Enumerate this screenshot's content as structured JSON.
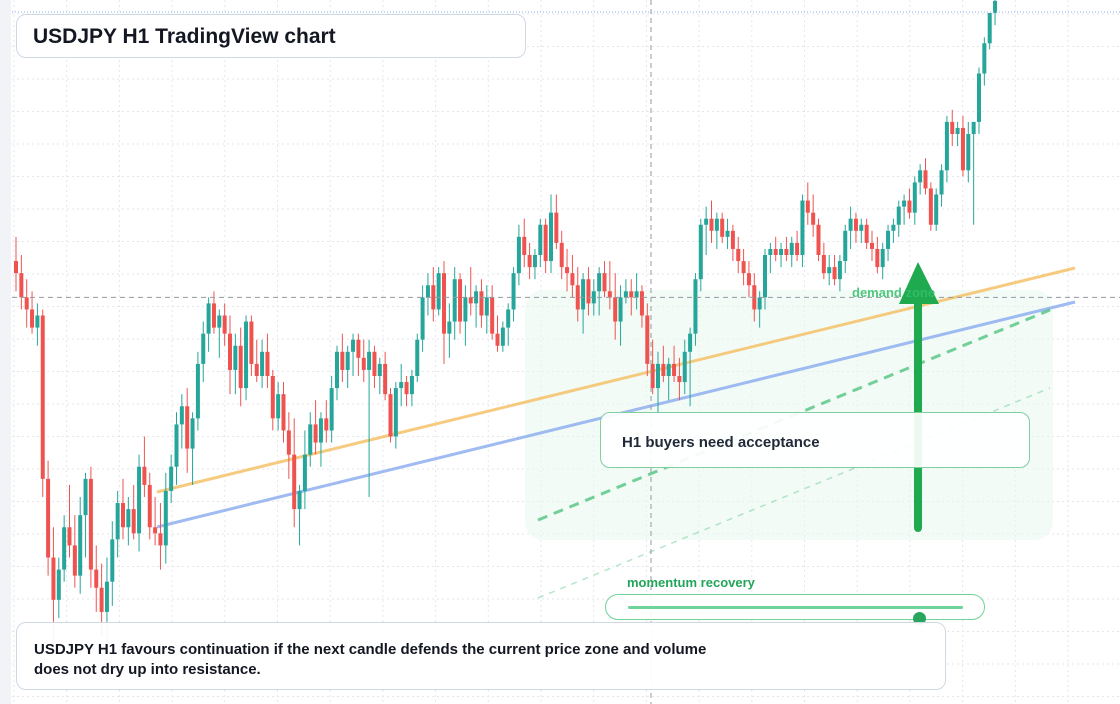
{
  "title": "USDJPY H1 TradingView chart",
  "annotations": {
    "note": "H1 buyers need acceptance",
    "zone_label": "demand zone",
    "summary": "USDJPY H1 favours continuation if the next candle defends the current price zone and volume does not dry up into resistance."
  },
  "momentum": {
    "label": "momentum recovery",
    "level": 0.87
  },
  "colors": {
    "up": "#26a69a",
    "down": "#ef5350",
    "support_line": "#f5c26b",
    "trend_line": "#8fb0ef",
    "channel": "#2fb866",
    "arrow": "#1faa4f",
    "grid": "#e3e6ec"
  },
  "chart_data": {
    "type": "candlestick",
    "symbol": "USDJPY",
    "timeframe": "H1",
    "ylim": [
      0,
      100
    ],
    "crosshair": {
      "candle_index": 136,
      "price": 53
    },
    "candles": [
      {
        "o": 59,
        "h": 63,
        "l": 54,
        "c": 57
      },
      {
        "o": 57,
        "h": 60,
        "l": 51,
        "c": 53
      },
      {
        "o": 53,
        "h": 56,
        "l": 48,
        "c": 51
      },
      {
        "o": 51,
        "h": 54,
        "l": 47,
        "c": 48
      },
      {
        "o": 48,
        "h": 52,
        "l": 45,
        "c": 50
      },
      {
        "o": 50,
        "h": 51,
        "l": 20,
        "c": 23
      },
      {
        "o": 23,
        "h": 26,
        "l": 7,
        "c": 10
      },
      {
        "o": 10,
        "h": 15,
        "l": -5,
        "c": 3
      },
      {
        "o": 3,
        "h": 10,
        "l": 0,
        "c": 8
      },
      {
        "o": 8,
        "h": 17,
        "l": 6,
        "c": 15
      },
      {
        "o": 15,
        "h": 22,
        "l": 10,
        "c": 12
      },
      {
        "o": 12,
        "h": 17,
        "l": 5,
        "c": 7
      },
      {
        "o": 7,
        "h": 20,
        "l": 4,
        "c": 17
      },
      {
        "o": 17,
        "h": 24,
        "l": 10,
        "c": 23
      },
      {
        "o": 23,
        "h": 25,
        "l": 5,
        "c": 8
      },
      {
        "o": 8,
        "h": 12,
        "l": 1,
        "c": 5
      },
      {
        "o": 5,
        "h": 9,
        "l": -3,
        "c": 1
      },
      {
        "o": 1,
        "h": 10,
        "l": -6,
        "c": 6
      },
      {
        "o": 6,
        "h": 16,
        "l": 2,
        "c": 13
      },
      {
        "o": 13,
        "h": 21,
        "l": 10,
        "c": 19
      },
      {
        "o": 19,
        "h": 23,
        "l": 13,
        "c": 15
      },
      {
        "o": 15,
        "h": 20,
        "l": 12,
        "c": 18
      },
      {
        "o": 18,
        "h": 22,
        "l": 13,
        "c": 14
      },
      {
        "o": 14,
        "h": 27,
        "l": 11,
        "c": 25
      },
      {
        "o": 25,
        "h": 30,
        "l": 20,
        "c": 22
      },
      {
        "o": 22,
        "h": 24,
        "l": 13,
        "c": 15
      },
      {
        "o": 15,
        "h": 20,
        "l": 12,
        "c": 14
      },
      {
        "o": 14,
        "h": 19,
        "l": 8,
        "c": 12
      },
      {
        "o": 12,
        "h": 24,
        "l": 9,
        "c": 21
      },
      {
        "o": 21,
        "h": 27,
        "l": 19,
        "c": 25
      },
      {
        "o": 25,
        "h": 34,
        "l": 22,
        "c": 32
      },
      {
        "o": 32,
        "h": 37,
        "l": 28,
        "c": 35
      },
      {
        "o": 35,
        "h": 38,
        "l": 24,
        "c": 28
      },
      {
        "o": 28,
        "h": 34,
        "l": 22,
        "c": 33
      },
      {
        "o": 33,
        "h": 44,
        "l": 31,
        "c": 42
      },
      {
        "o": 42,
        "h": 49,
        "l": 39,
        "c": 47
      },
      {
        "o": 47,
        "h": 53,
        "l": 44,
        "c": 52
      },
      {
        "o": 52,
        "h": 54,
        "l": 47,
        "c": 48
      },
      {
        "o": 48,
        "h": 51,
        "l": 43,
        "c": 50
      },
      {
        "o": 50,
        "h": 52,
        "l": 45,
        "c": 47
      },
      {
        "o": 47,
        "h": 50,
        "l": 37,
        "c": 41
      },
      {
        "o": 41,
        "h": 47,
        "l": 37,
        "c": 45
      },
      {
        "o": 45,
        "h": 48,
        "l": 35,
        "c": 38
      },
      {
        "o": 38,
        "h": 50,
        "l": 36,
        "c": 49
      },
      {
        "o": 49,
        "h": 50,
        "l": 40,
        "c": 42
      },
      {
        "o": 42,
        "h": 46,
        "l": 39,
        "c": 40
      },
      {
        "o": 40,
        "h": 46,
        "l": 38,
        "c": 44
      },
      {
        "o": 44,
        "h": 47,
        "l": 38,
        "c": 40
      },
      {
        "o": 40,
        "h": 41,
        "l": 31,
        "c": 33
      },
      {
        "o": 33,
        "h": 39,
        "l": 31,
        "c": 37
      },
      {
        "o": 37,
        "h": 39,
        "l": 29,
        "c": 31
      },
      {
        "o": 31,
        "h": 34,
        "l": 23,
        "c": 27
      },
      {
        "o": 27,
        "h": 33,
        "l": 15,
        "c": 18
      },
      {
        "o": 18,
        "h": 22,
        "l": 12,
        "c": 21
      },
      {
        "o": 21,
        "h": 31,
        "l": 18,
        "c": 27
      },
      {
        "o": 27,
        "h": 34,
        "l": 25,
        "c": 32
      },
      {
        "o": 32,
        "h": 36,
        "l": 27,
        "c": 29
      },
      {
        "o": 29,
        "h": 34,
        "l": 25,
        "c": 33
      },
      {
        "o": 33,
        "h": 36,
        "l": 29,
        "c": 31
      },
      {
        "o": 31,
        "h": 40,
        "l": 29,
        "c": 38
      },
      {
        "o": 38,
        "h": 45,
        "l": 36,
        "c": 44
      },
      {
        "o": 44,
        "h": 47,
        "l": 39,
        "c": 41
      },
      {
        "o": 41,
        "h": 45,
        "l": 38,
        "c": 44
      },
      {
        "o": 44,
        "h": 47,
        "l": 40,
        "c": 46
      },
      {
        "o": 46,
        "h": 47,
        "l": 40,
        "c": 43
      },
      {
        "o": 43,
        "h": 46,
        "l": 39,
        "c": 41
      },
      {
        "o": 41,
        "h": 46,
        "l": 20,
        "c": 44
      },
      {
        "o": 44,
        "h": 45,
        "l": 38,
        "c": 40
      },
      {
        "o": 40,
        "h": 43,
        "l": 37,
        "c": 42
      },
      {
        "o": 42,
        "h": 44,
        "l": 36,
        "c": 37
      },
      {
        "o": 37,
        "h": 38,
        "l": 29,
        "c": 30
      },
      {
        "o": 30,
        "h": 39,
        "l": 28,
        "c": 38
      },
      {
        "o": 38,
        "h": 42,
        "l": 35,
        "c": 39
      },
      {
        "o": 39,
        "h": 40,
        "l": 35,
        "c": 37
      },
      {
        "o": 37,
        "h": 41,
        "l": 35,
        "c": 40
      },
      {
        "o": 40,
        "h": 47,
        "l": 39,
        "c": 46
      },
      {
        "o": 46,
        "h": 55,
        "l": 44,
        "c": 53
      },
      {
        "o": 53,
        "h": 57,
        "l": 50,
        "c": 55
      },
      {
        "o": 55,
        "h": 58,
        "l": 49,
        "c": 51
      },
      {
        "o": 51,
        "h": 58,
        "l": 50,
        "c": 57
      },
      {
        "o": 57,
        "h": 59,
        "l": 42,
        "c": 47
      },
      {
        "o": 47,
        "h": 52,
        "l": 43,
        "c": 49
      },
      {
        "o": 49,
        "h": 58,
        "l": 46,
        "c": 56
      },
      {
        "o": 56,
        "h": 57,
        "l": 47,
        "c": 49
      },
      {
        "o": 49,
        "h": 55,
        "l": 45,
        "c": 53
      },
      {
        "o": 53,
        "h": 58,
        "l": 50,
        "c": 52
      },
      {
        "o": 52,
        "h": 55,
        "l": 48,
        "c": 54
      },
      {
        "o": 54,
        "h": 56,
        "l": 48,
        "c": 50
      },
      {
        "o": 50,
        "h": 55,
        "l": 47,
        "c": 53
      },
      {
        "o": 53,
        "h": 55,
        "l": 46,
        "c": 47
      },
      {
        "o": 47,
        "h": 50,
        "l": 44,
        "c": 45
      },
      {
        "o": 45,
        "h": 49,
        "l": 44,
        "c": 48
      },
      {
        "o": 48,
        "h": 52,
        "l": 45,
        "c": 51
      },
      {
        "o": 51,
        "h": 58,
        "l": 49,
        "c": 57
      },
      {
        "o": 57,
        "h": 65,
        "l": 55,
        "c": 63
      },
      {
        "o": 63,
        "h": 66,
        "l": 58,
        "c": 60
      },
      {
        "o": 60,
        "h": 62,
        "l": 56,
        "c": 58
      },
      {
        "o": 58,
        "h": 61,
        "l": 56,
        "c": 60
      },
      {
        "o": 60,
        "h": 66,
        "l": 58,
        "c": 65
      },
      {
        "o": 65,
        "h": 66,
        "l": 57,
        "c": 59
      },
      {
        "o": 59,
        "h": 70,
        "l": 57,
        "c": 67
      },
      {
        "o": 67,
        "h": 70,
        "l": 61,
        "c": 62
      },
      {
        "o": 62,
        "h": 64,
        "l": 56,
        "c": 58
      },
      {
        "o": 58,
        "h": 61,
        "l": 54,
        "c": 57
      },
      {
        "o": 57,
        "h": 60,
        "l": 53,
        "c": 55
      },
      {
        "o": 55,
        "h": 58,
        "l": 49,
        "c": 51
      },
      {
        "o": 51,
        "h": 57,
        "l": 47,
        "c": 56
      },
      {
        "o": 56,
        "h": 58,
        "l": 50,
        "c": 52
      },
      {
        "o": 52,
        "h": 56,
        "l": 50,
        "c": 54
      },
      {
        "o": 54,
        "h": 58,
        "l": 50,
        "c": 57
      },
      {
        "o": 57,
        "h": 59,
        "l": 53,
        "c": 54
      },
      {
        "o": 54,
        "h": 59,
        "l": 51,
        "c": 53
      },
      {
        "o": 53,
        "h": 57,
        "l": 46,
        "c": 49
      },
      {
        "o": 49,
        "h": 55,
        "l": 45,
        "c": 53
      },
      {
        "o": 53,
        "h": 56,
        "l": 52,
        "c": 54
      },
      {
        "o": 54,
        "h": 56,
        "l": 50,
        "c": 53
      },
      {
        "o": 53,
        "h": 57,
        "l": 51,
        "c": 54
      },
      {
        "o": 54,
        "h": 55,
        "l": 48,
        "c": 50
      },
      {
        "o": 50,
        "h": 52,
        "l": 40,
        "c": 42
      },
      {
        "o": 42,
        "h": 46,
        "l": 37,
        "c": 38
      },
      {
        "o": 38,
        "h": 44,
        "l": 34,
        "c": 42
      },
      {
        "o": 42,
        "h": 45,
        "l": 39,
        "c": 40
      },
      {
        "o": 40,
        "h": 43,
        "l": 36,
        "c": 42
      },
      {
        "o": 42,
        "h": 45,
        "l": 39,
        "c": 40
      },
      {
        "o": 40,
        "h": 43,
        "l": 36,
        "c": 39
      },
      {
        "o": 39,
        "h": 46,
        "l": 37,
        "c": 44
      },
      {
        "o": 44,
        "h": 48,
        "l": 35,
        "c": 47
      },
      {
        "o": 47,
        "h": 57,
        "l": 45,
        "c": 56
      },
      {
        "o": 56,
        "h": 66,
        "l": 54,
        "c": 65
      },
      {
        "o": 65,
        "h": 68,
        "l": 60,
        "c": 66
      },
      {
        "o": 66,
        "h": 69,
        "l": 62,
        "c": 64
      },
      {
        "o": 64,
        "h": 67,
        "l": 61,
        "c": 66
      },
      {
        "o": 66,
        "h": 67,
        "l": 62,
        "c": 63
      },
      {
        "o": 63,
        "h": 66,
        "l": 61,
        "c": 64
      },
      {
        "o": 64,
        "h": 65,
        "l": 59,
        "c": 61
      },
      {
        "o": 61,
        "h": 63,
        "l": 57,
        "c": 59
      },
      {
        "o": 59,
        "h": 61,
        "l": 55,
        "c": 57
      },
      {
        "o": 57,
        "h": 59,
        "l": 53,
        "c": 55
      },
      {
        "o": 55,
        "h": 57,
        "l": 49,
        "c": 51
      },
      {
        "o": 51,
        "h": 54,
        "l": 48,
        "c": 53
      },
      {
        "o": 53,
        "h": 61,
        "l": 51,
        "c": 60
      },
      {
        "o": 60,
        "h": 62,
        "l": 57,
        "c": 61
      },
      {
        "o": 61,
        "h": 63,
        "l": 59,
        "c": 60
      },
      {
        "o": 60,
        "h": 62,
        "l": 58,
        "c": 61
      },
      {
        "o": 61,
        "h": 63,
        "l": 59,
        "c": 60
      },
      {
        "o": 60,
        "h": 63,
        "l": 58,
        "c": 62
      },
      {
        "o": 62,
        "h": 64,
        "l": 59,
        "c": 60
      },
      {
        "o": 60,
        "h": 70,
        "l": 58,
        "c": 69
      },
      {
        "o": 69,
        "h": 72,
        "l": 65,
        "c": 67
      },
      {
        "o": 67,
        "h": 70,
        "l": 63,
        "c": 65
      },
      {
        "o": 65,
        "h": 66,
        "l": 59,
        "c": 60
      },
      {
        "o": 60,
        "h": 62,
        "l": 56,
        "c": 57
      },
      {
        "o": 57,
        "h": 60,
        "l": 55,
        "c": 58
      },
      {
        "o": 58,
        "h": 60,
        "l": 55,
        "c": 56
      },
      {
        "o": 56,
        "h": 60,
        "l": 54,
        "c": 59
      },
      {
        "o": 59,
        "h": 65,
        "l": 57,
        "c": 64
      },
      {
        "o": 64,
        "h": 68,
        "l": 61,
        "c": 66
      },
      {
        "o": 66,
        "h": 67,
        "l": 62,
        "c": 64
      },
      {
        "o": 64,
        "h": 66,
        "l": 62,
        "c": 65
      },
      {
        "o": 65,
        "h": 66,
        "l": 61,
        "c": 62
      },
      {
        "o": 62,
        "h": 64,
        "l": 59,
        "c": 61
      },
      {
        "o": 61,
        "h": 63,
        "l": 57,
        "c": 58
      },
      {
        "o": 58,
        "h": 62,
        "l": 56,
        "c": 61
      },
      {
        "o": 61,
        "h": 65,
        "l": 59,
        "c": 64
      },
      {
        "o": 64,
        "h": 66,
        "l": 62,
        "c": 65
      },
      {
        "o": 65,
        "h": 69,
        "l": 63,
        "c": 68
      },
      {
        "o": 68,
        "h": 70,
        "l": 65,
        "c": 69
      },
      {
        "o": 69,
        "h": 71,
        "l": 66,
        "c": 67
      },
      {
        "o": 67,
        "h": 73,
        "l": 65,
        "c": 72
      },
      {
        "o": 72,
        "h": 75,
        "l": 70,
        "c": 74
      },
      {
        "o": 74,
        "h": 76,
        "l": 70,
        "c": 71
      },
      {
        "o": 71,
        "h": 72,
        "l": 64,
        "c": 65
      },
      {
        "o": 65,
        "h": 71,
        "l": 64,
        "c": 70
      },
      {
        "o": 70,
        "h": 75,
        "l": 68,
        "c": 74
      },
      {
        "o": 74,
        "h": 83,
        "l": 72,
        "c": 82
      },
      {
        "o": 82,
        "h": 84,
        "l": 78,
        "c": 80
      },
      {
        "o": 80,
        "h": 82,
        "l": 78,
        "c": 81
      },
      {
        "o": 81,
        "h": 83,
        "l": 73,
        "c": 74
      },
      {
        "o": 74,
        "h": 82,
        "l": 72,
        "c": 80
      },
      {
        "o": 80,
        "h": 82,
        "l": 65,
        "c": 82
      },
      {
        "o": 82,
        "h": 91,
        "l": 80,
        "c": 90
      },
      {
        "o": 90,
        "h": 96,
        "l": 88,
        "c": 95
      },
      {
        "o": 95,
        "h": 100,
        "l": 94,
        "c": 100
      },
      {
        "o": 100,
        "h": 104,
        "l": 98,
        "c": 102
      }
    ]
  }
}
